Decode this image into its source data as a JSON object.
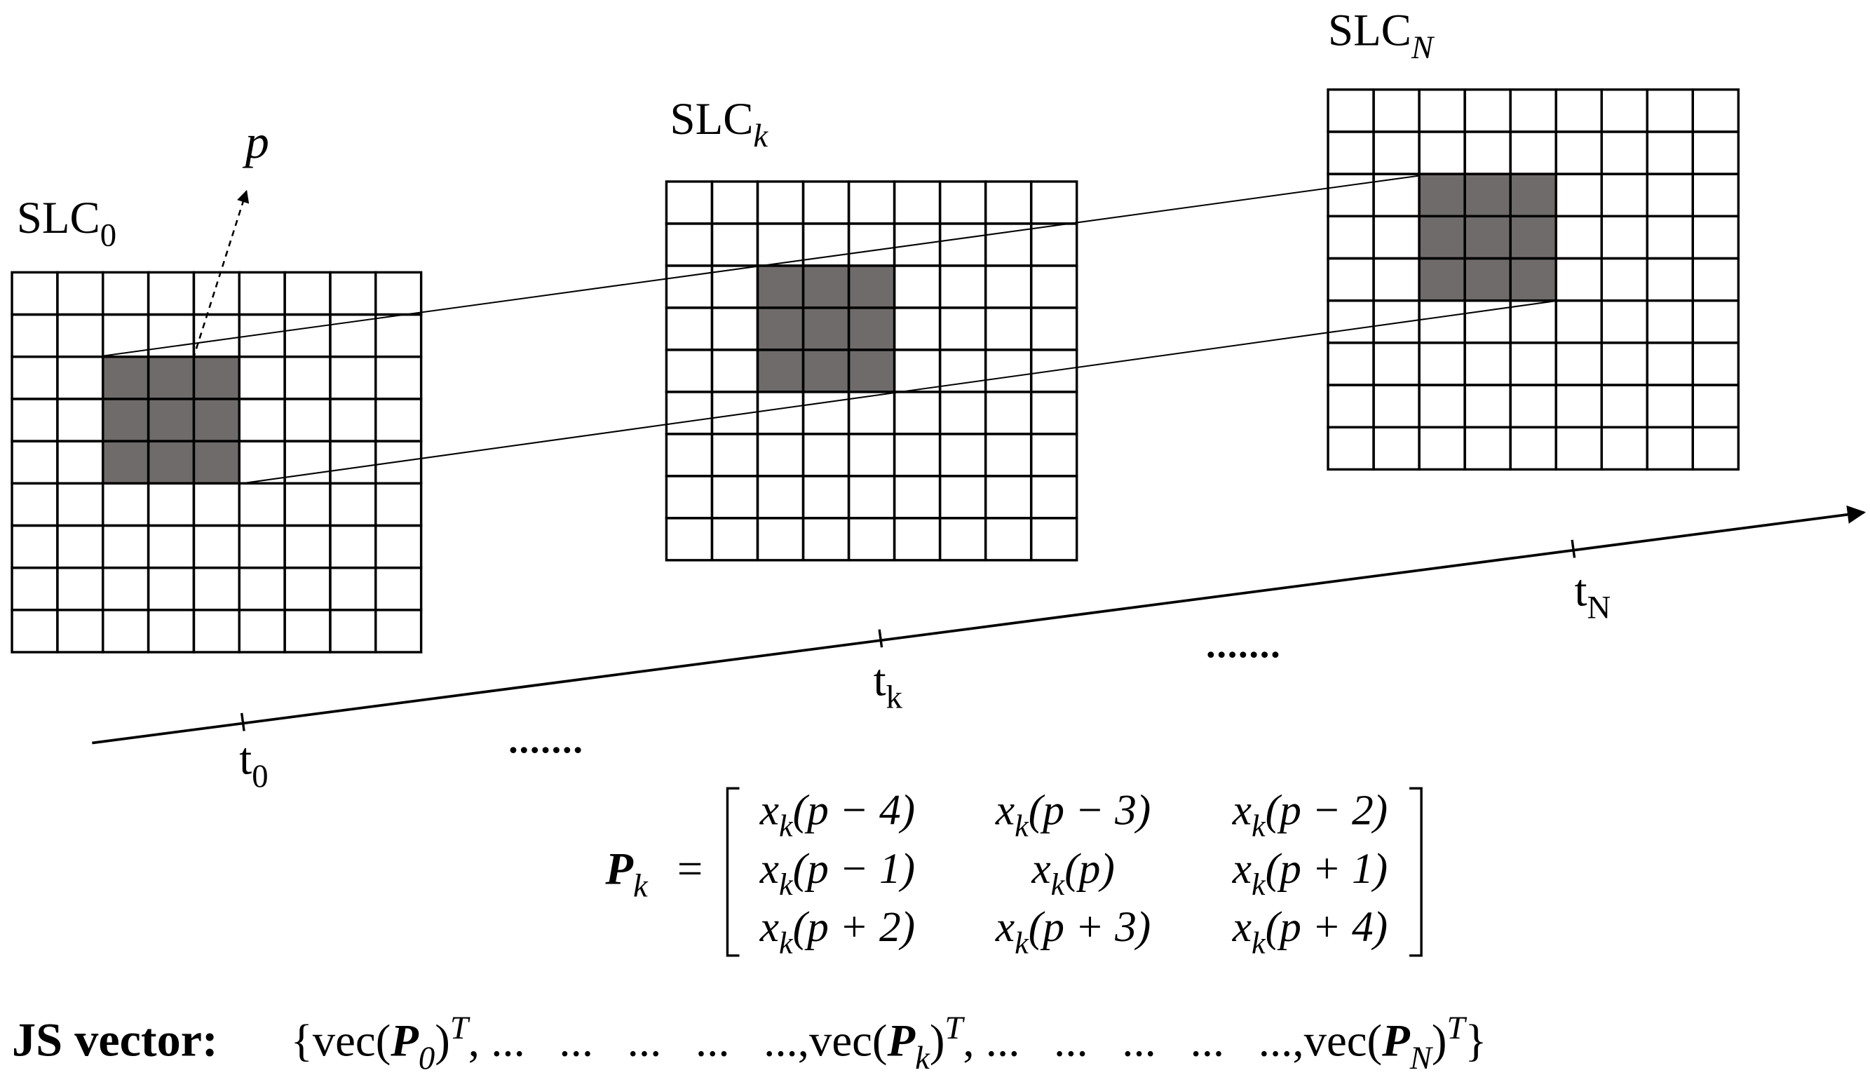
{
  "slc": [
    {
      "base": "SLC",
      "sub": "0"
    },
    {
      "base": "SLC",
      "sub": "k"
    },
    {
      "base": "SLC",
      "sub": "N"
    }
  ],
  "pixel_label": "p",
  "time_axis": {
    "ticks": [
      {
        "base": "t",
        "sub": "0"
      },
      {
        "base": "t",
        "sub": "k"
      },
      {
        "base": "t",
        "sub": "N"
      }
    ],
    "ellipses": [
      ".......",
      "......."
    ]
  },
  "matrix": {
    "lhs": {
      "symbol": "P",
      "sub": "k",
      "eq": "="
    },
    "rows": [
      [
        {
          "var": "x",
          "sub": "k",
          "arg": "(p − 4)"
        },
        {
          "var": "x",
          "sub": "k",
          "arg": "(p − 3)"
        },
        {
          "var": "x",
          "sub": "k",
          "arg": "(p − 2)"
        }
      ],
      [
        {
          "var": "x",
          "sub": "k",
          "arg": "(p − 1)"
        },
        {
          "var": "x",
          "sub": "k",
          "arg": "(p)"
        },
        {
          "var": "x",
          "sub": "k",
          "arg": "(p + 1)"
        }
      ],
      [
        {
          "var": "x",
          "sub": "k",
          "arg": "(p + 2)"
        },
        {
          "var": "x",
          "sub": "k",
          "arg": "(p + 3)"
        },
        {
          "var": "x",
          "sub": "k",
          "arg": "(p + 4)"
        }
      ]
    ]
  },
  "js_vector": {
    "label": "JS vector:",
    "open": "{",
    "close": "}",
    "separator": ", ...   ...   ...   ...   ...,",
    "terms": [
      {
        "prefix": "vec(",
        "matrix": "P",
        "sub": "0",
        "suffix": ")",
        "sup": "T"
      },
      {
        "prefix": "vec(",
        "matrix": "P",
        "sub": "k",
        "suffix": ")",
        "sup": "T"
      },
      {
        "prefix": "vec(",
        "matrix": "P",
        "sub": "N",
        "suffix": ")",
        "sup": "T"
      }
    ]
  }
}
